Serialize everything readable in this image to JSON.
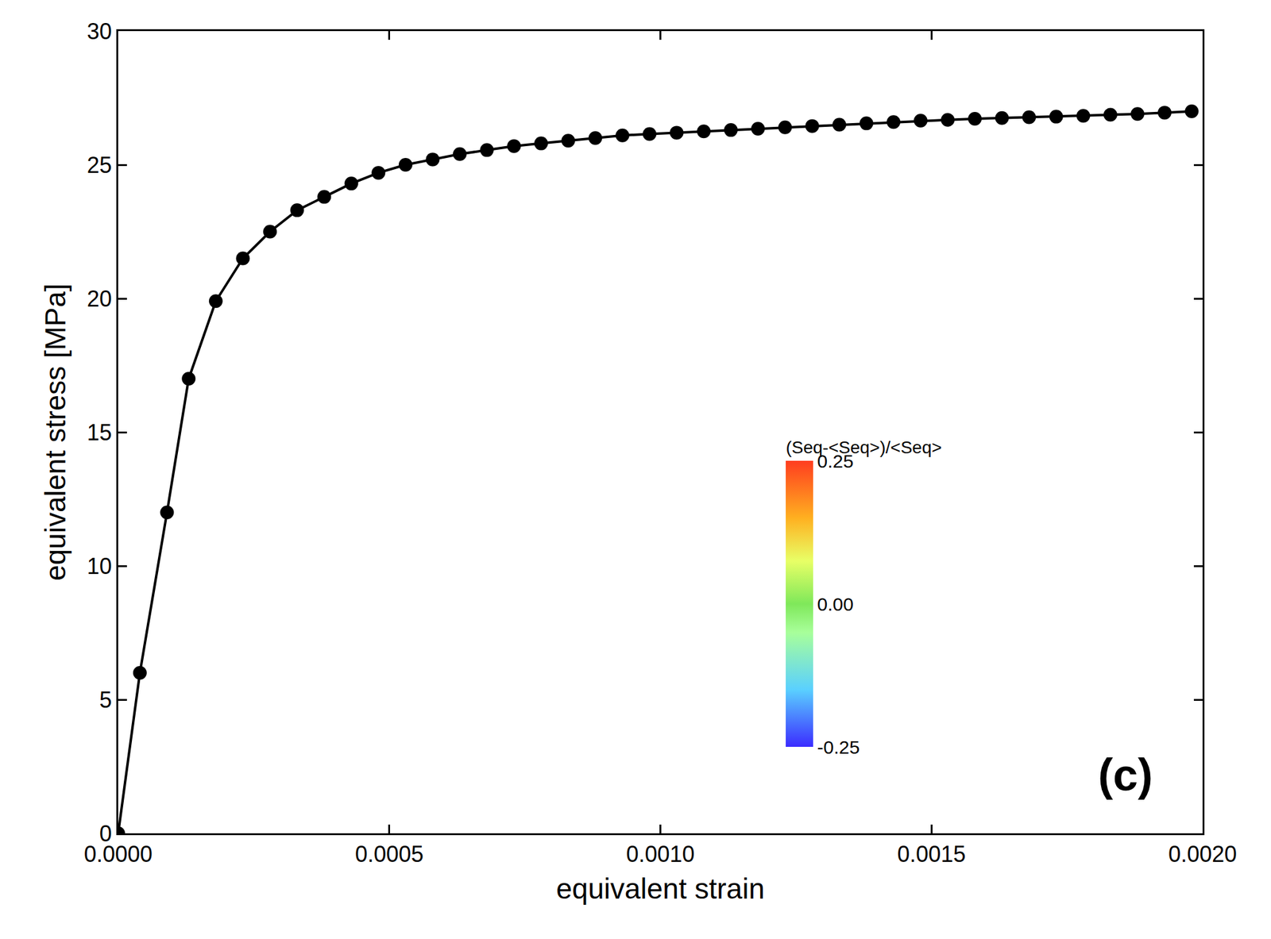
{
  "chart_data": {
    "type": "line",
    "marker": "circle",
    "color": "#000000",
    "x_label": "equivalent strain",
    "y_label": "equivalent stress [MPa]",
    "x": [
      0,
      4e-05,
      9e-05,
      0.00013,
      0.00018,
      0.00023,
      0.00028,
      0.00033,
      0.00038,
      0.00043,
      0.00048,
      0.00053,
      0.00058,
      0.00063,
      0.00068,
      0.00073,
      0.00078,
      0.00083,
      0.00088,
      0.00093,
      0.00098,
      0.00103,
      0.00108,
      0.00113,
      0.00118,
      0.00123,
      0.00128,
      0.00133,
      0.00138,
      0.00143,
      0.00148,
      0.00153,
      0.00158,
      0.00163,
      0.00168,
      0.00173,
      0.00178,
      0.00183,
      0.00188,
      0.00193,
      0.00198
    ],
    "values": [
      0,
      6.0,
      12.0,
      17.0,
      19.9,
      21.5,
      22.5,
      23.3,
      23.8,
      24.3,
      24.7,
      25.0,
      25.2,
      25.4,
      25.55,
      25.7,
      25.8,
      25.9,
      26.0,
      26.1,
      26.15,
      26.2,
      26.25,
      26.3,
      26.35,
      26.4,
      26.45,
      26.5,
      26.55,
      26.6,
      26.65,
      26.68,
      26.72,
      26.75,
      26.78,
      26.8,
      26.83,
      26.87,
      26.9,
      26.95,
      27.0
    ],
    "xlim": [
      0,
      0.002
    ],
    "xticks": [
      {
        "value": 0,
        "label": "0.0000"
      },
      {
        "value": 0.0005,
        "label": "0.0005"
      },
      {
        "value": 0.001,
        "label": "0.0010"
      },
      {
        "value": 0.0015,
        "label": "0.0015"
      },
      {
        "value": 0.002,
        "label": "0.0020"
      }
    ],
    "ylim": [
      0,
      30
    ],
    "yticks": [
      0,
      5,
      10,
      15,
      20,
      25,
      30
    ],
    "grid": false,
    "panel_label": "(c)",
    "colorbar": {
      "title": "(Seq-<Seq>)/<Seq>",
      "range": [
        -0.25,
        0.25
      ],
      "ticks": [
        {
          "value": 0.25,
          "label": "0.25"
        },
        {
          "value": 0,
          "label": "0.00"
        },
        {
          "value": -0.25,
          "label": "-0.25"
        }
      ]
    }
  }
}
